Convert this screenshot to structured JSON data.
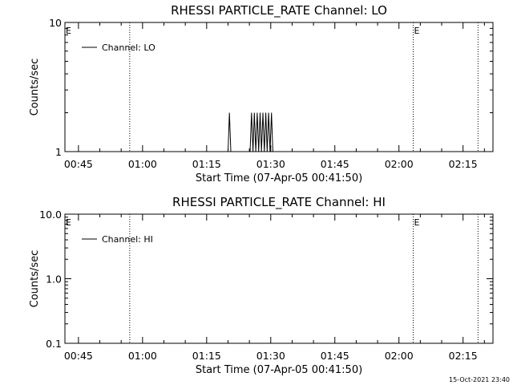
{
  "chart_data": [
    {
      "type": "line",
      "title": "RHESSI PARTICLE_RATE Channel: LO",
      "xlabel": "Start Time (07-Apr-05 00:41:50)",
      "ylabel": "Counts/sec",
      "y_scale": "log",
      "ylim": [
        1,
        10
      ],
      "y_ticks": [
        "1",
        "10"
      ],
      "xlim": [
        "00:41:50",
        "02:22:00"
      ],
      "x_ticks": [
        "00:45",
        "01:00",
        "01:15",
        "01:30",
        "01:45",
        "02:00",
        "02:15"
      ],
      "legend": {
        "position": "top-left",
        "entries": [
          "Channel: LO"
        ]
      },
      "series": [
        {
          "name": "Channel: LO",
          "x": [
            "01:20:00",
            "01:20:20",
            "01:20:40",
            "01:21:00",
            "01:25:10",
            "01:25:30",
            "01:25:50",
            "01:26:10",
            "01:26:30",
            "01:26:50",
            "01:27:10",
            "01:27:30",
            "01:27:50",
            "01:28:10",
            "01:28:30",
            "01:28:50",
            "01:29:10",
            "01:29:30",
            "01:29:50",
            "01:30:10",
            "01:30:30"
          ],
          "y": [
            1,
            2,
            1,
            1,
            1,
            2,
            1,
            2,
            1,
            2,
            1,
            2,
            1,
            2,
            1,
            2,
            1,
            2,
            1,
            2,
            1
          ]
        }
      ],
      "vertical_lines": [
        "00:57:00",
        "02:03:20",
        "02:18:30"
      ],
      "markers": [
        {
          "label": "E",
          "x": "00:41:50"
        },
        {
          "label": "E",
          "x": "02:03:20"
        }
      ]
    },
    {
      "type": "line",
      "title": "RHESSI PARTICLE_RATE Channel: HI",
      "xlabel": "Start Time (07-Apr-05 00:41:50)",
      "ylabel": "Counts/sec",
      "y_scale": "log",
      "ylim": [
        0.1,
        10
      ],
      "y_ticks": [
        "0.1",
        "1.0",
        "10.0"
      ],
      "xlim": [
        "00:41:50",
        "02:22:00"
      ],
      "x_ticks": [
        "00:45",
        "01:00",
        "01:15",
        "01:30",
        "01:45",
        "02:00",
        "02:15"
      ],
      "legend": {
        "position": "top-left",
        "entries": [
          "Channel: HI"
        ]
      },
      "series": [
        {
          "name": "Channel: HI",
          "x": [],
          "y": []
        }
      ],
      "vertical_lines": [
        "00:57:00",
        "02:03:20",
        "02:18:30"
      ],
      "markers": [
        {
          "label": "E",
          "x": "00:41:50"
        },
        {
          "label": "E",
          "x": "02:03:20"
        }
      ]
    }
  ],
  "footer": {
    "timestamp": "15-Oct-2021 23:40"
  }
}
